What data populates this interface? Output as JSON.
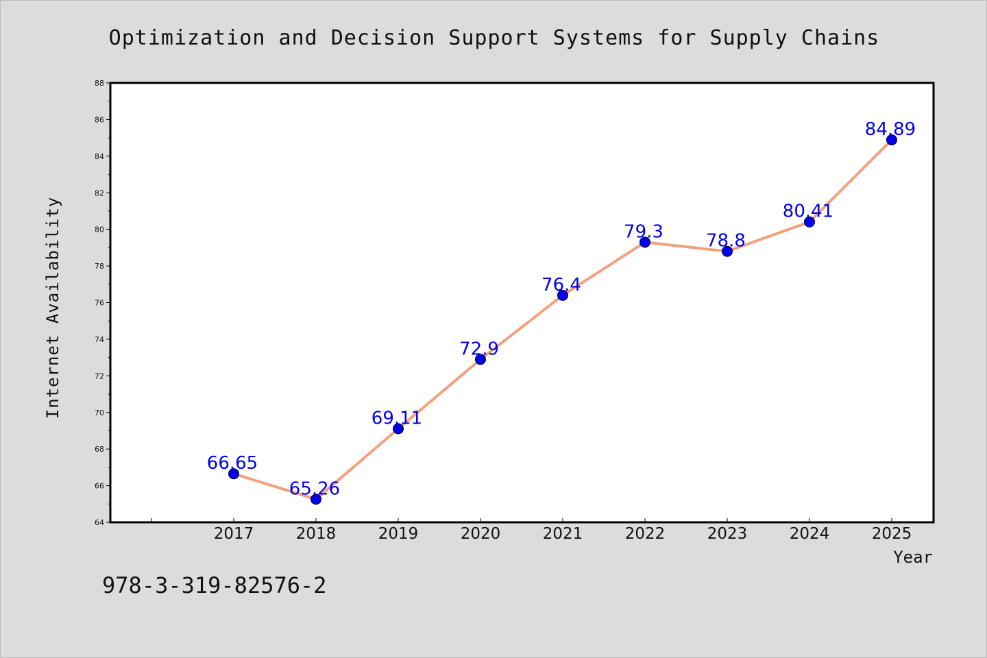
{
  "chart_data": {
    "type": "line",
    "title": "Optimization and Decision Support Systems for Supply Chains",
    "xlabel": "Year",
    "ylabel": "Internet Availability",
    "categories": [
      "2017",
      "2018",
      "2019",
      "2020",
      "2021",
      "2022",
      "2023",
      "2024",
      "2025"
    ],
    "series": [
      {
        "values": [
          66.65,
          65.26,
          69.11,
          72.9,
          76.4,
          79.3,
          78.8,
          80.41,
          84.89
        ],
        "data_labels": [
          "66.65",
          "65.26",
          "69.11",
          "72.9",
          "76.4",
          "79.3",
          "78.8",
          "80.41",
          "84.89"
        ]
      }
    ],
    "ylim": [
      64,
      88
    ],
    "y_ticks": [
      "64",
      "66",
      "68",
      "70",
      "72",
      "74",
      "76",
      "78",
      "80",
      "82",
      "84",
      "86",
      "88"
    ],
    "grid": false,
    "legend": "none",
    "colors": {
      "line": "#f4a07c",
      "marker": "#0000ee",
      "label": "#0000ee",
      "plot_background": "#ffffff",
      "page_background": "#dcdcdc"
    }
  },
  "footnote": "978-3-319-82576-2"
}
